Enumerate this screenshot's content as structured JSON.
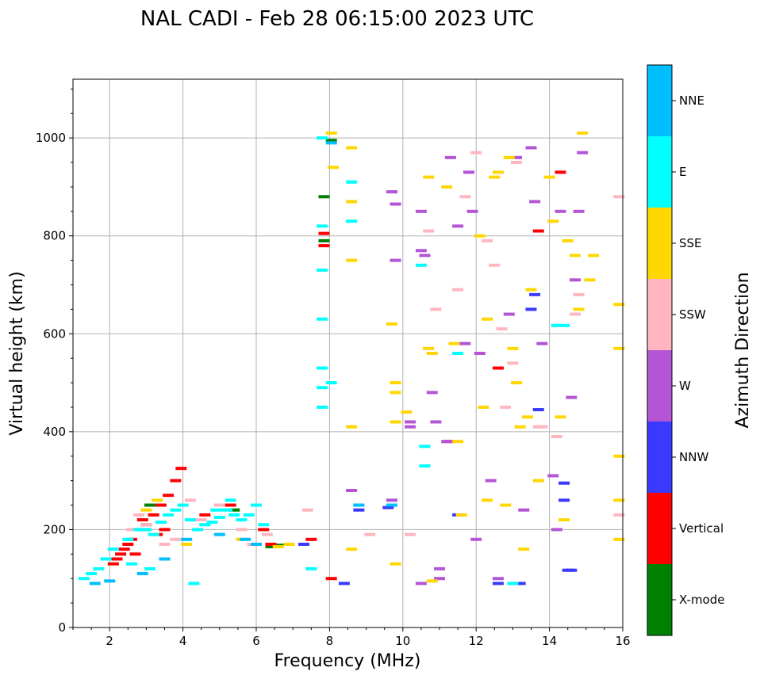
{
  "chart_data": {
    "type": "scatter",
    "title": "NAL CADI - Feb 28 06:15:00 2023 UTC",
    "xlabel": "Frequency (MHz)",
    "ylabel": "Virtual height (km)",
    "xlim": [
      1,
      16
    ],
    "ylim": [
      0,
      1120
    ],
    "xticks": [
      2,
      4,
      6,
      8,
      10,
      12,
      14,
      16
    ],
    "yticks": [
      0,
      200,
      400,
      600,
      800,
      1000
    ],
    "grid": true,
    "colorbar": {
      "title": "Azimuth Direction",
      "categories": [
        {
          "name": "X-mode",
          "color": "#008000"
        },
        {
          "name": "Vertical",
          "color": "#ff0000"
        },
        {
          "name": "NNW",
          "color": "#3a3aff"
        },
        {
          "name": "W",
          "color": "#b455d6"
        },
        {
          "name": "SSW",
          "color": "#ffb6c1"
        },
        {
          "name": "SSE",
          "color": "#ffd700"
        },
        {
          "name": "E",
          "color": "#00ffff"
        },
        {
          "name": "NNE",
          "color": "#00bfff"
        }
      ]
    },
    "series": [
      {
        "name": "X-mode",
        "points": [
          [
            6.4,
            165
          ],
          [
            6.6,
            168
          ],
          [
            7.85,
            880
          ],
          [
            7.85,
            790
          ],
          [
            5.4,
            240
          ],
          [
            3.1,
            250
          ],
          [
            8.05,
            995
          ]
        ]
      },
      {
        "name": "Vertical",
        "points": [
          [
            2.1,
            130
          ],
          [
            2.2,
            140
          ],
          [
            2.3,
            150
          ],
          [
            2.4,
            160
          ],
          [
            2.5,
            170
          ],
          [
            2.6,
            180
          ],
          [
            2.7,
            150
          ],
          [
            2.8,
            200
          ],
          [
            3.0,
            210
          ],
          [
            3.2,
            230
          ],
          [
            3.4,
            250
          ],
          [
            3.6,
            270
          ],
          [
            3.8,
            300
          ],
          [
            3.95,
            325
          ],
          [
            2.9,
            220
          ],
          [
            3.3,
            190
          ],
          [
            3.5,
            200
          ],
          [
            4.6,
            230
          ],
          [
            5.3,
            250
          ],
          [
            6.2,
            200
          ],
          [
            6.4,
            170
          ],
          [
            7.85,
            780
          ],
          [
            7.85,
            805
          ],
          [
            8.05,
            100
          ],
          [
            14.3,
            930
          ],
          [
            12.6,
            530
          ],
          [
            11.25,
            380
          ],
          [
            13.7,
            810
          ],
          [
            7.5,
            180
          ]
        ]
      },
      {
        "name": "NNW",
        "points": [
          [
            8.4,
            90
          ],
          [
            8.8,
            240
          ],
          [
            11.5,
            230
          ],
          [
            12.6,
            90
          ],
          [
            13.2,
            90
          ],
          [
            13.6,
            680
          ],
          [
            13.7,
            445
          ],
          [
            14.4,
            295
          ],
          [
            14.4,
            260
          ],
          [
            14.5,
            117
          ],
          [
            14.6,
            117
          ],
          [
            9.6,
            245
          ],
          [
            13.5,
            650
          ],
          [
            7.3,
            170
          ]
        ]
      },
      {
        "name": "W",
        "points": [
          [
            8.6,
            280
          ],
          [
            9.7,
            890
          ],
          [
            9.8,
            865
          ],
          [
            9.8,
            750
          ],
          [
            10.2,
            410
          ],
          [
            10.2,
            420
          ],
          [
            10.5,
            850
          ],
          [
            10.5,
            770
          ],
          [
            10.6,
            760
          ],
          [
            10.8,
            480
          ],
          [
            11.0,
            120
          ],
          [
            11.0,
            100
          ],
          [
            11.2,
            380
          ],
          [
            11.3,
            960
          ],
          [
            11.5,
            820
          ],
          [
            11.7,
            580
          ],
          [
            11.8,
            930
          ],
          [
            11.9,
            850
          ],
          [
            12.0,
            180
          ],
          [
            12.1,
            560
          ],
          [
            12.4,
            300
          ],
          [
            12.6,
            100
          ],
          [
            12.9,
            640
          ],
          [
            13.1,
            960
          ],
          [
            13.3,
            240
          ],
          [
            13.5,
            980
          ],
          [
            13.6,
            870
          ],
          [
            13.8,
            580
          ],
          [
            14.1,
            310
          ],
          [
            14.2,
            200
          ],
          [
            14.3,
            850
          ],
          [
            14.6,
            470
          ],
          [
            14.7,
            710
          ],
          [
            14.8,
            850
          ],
          [
            14.9,
            970
          ],
          [
            9.7,
            260
          ],
          [
            10.5,
            90
          ],
          [
            10.9,
            420
          ]
        ]
      },
      {
        "name": "SSW",
        "points": [
          [
            2.6,
            200
          ],
          [
            2.8,
            230
          ],
          [
            3.0,
            210
          ],
          [
            3.2,
            190
          ],
          [
            3.5,
            170
          ],
          [
            3.8,
            180
          ],
          [
            4.2,
            260
          ],
          [
            4.5,
            220
          ],
          [
            5.0,
            250
          ],
          [
            5.6,
            200
          ],
          [
            5.9,
            170
          ],
          [
            6.3,
            190
          ],
          [
            7.4,
            240
          ],
          [
            9.1,
            190
          ],
          [
            10.2,
            190
          ],
          [
            10.7,
            810
          ],
          [
            11.5,
            690
          ],
          [
            11.7,
            880
          ],
          [
            12.0,
            970
          ],
          [
            12.3,
            790
          ],
          [
            12.7,
            610
          ],
          [
            12.8,
            450
          ],
          [
            13.0,
            540
          ],
          [
            13.1,
            950
          ],
          [
            13.7,
            410
          ],
          [
            13.8,
            410
          ],
          [
            14.2,
            390
          ],
          [
            14.7,
            640
          ],
          [
            14.8,
            680
          ],
          [
            15.9,
            880
          ],
          [
            15.9,
            230
          ],
          [
            10.9,
            650
          ],
          [
            12.5,
            740
          ]
        ]
      },
      {
        "name": "SSE",
        "points": [
          [
            8.05,
            1010
          ],
          [
            8.1,
            940
          ],
          [
            8.6,
            980
          ],
          [
            8.6,
            870
          ],
          [
            8.6,
            750
          ],
          [
            8.6,
            410
          ],
          [
            8.6,
            160
          ],
          [
            9.7,
            620
          ],
          [
            9.8,
            500
          ],
          [
            9.8,
            480
          ],
          [
            9.8,
            420
          ],
          [
            9.8,
            130
          ],
          [
            10.1,
            440
          ],
          [
            10.7,
            920
          ],
          [
            10.7,
            570
          ],
          [
            10.8,
            560
          ],
          [
            11.2,
            900
          ],
          [
            11.4,
            580
          ],
          [
            11.5,
            380
          ],
          [
            11.6,
            230
          ],
          [
            12.1,
            800
          ],
          [
            12.2,
            450
          ],
          [
            12.3,
            630
          ],
          [
            12.3,
            260
          ],
          [
            12.5,
            920
          ],
          [
            12.6,
            930
          ],
          [
            12.8,
            250
          ],
          [
            12.9,
            960
          ],
          [
            13.0,
            570
          ],
          [
            13.1,
            500
          ],
          [
            13.2,
            410
          ],
          [
            13.3,
            160
          ],
          [
            13.4,
            430
          ],
          [
            13.5,
            690
          ],
          [
            13.7,
            300
          ],
          [
            14.0,
            920
          ],
          [
            14.1,
            830
          ],
          [
            14.3,
            430
          ],
          [
            14.4,
            220
          ],
          [
            14.5,
            790
          ],
          [
            14.7,
            760
          ],
          [
            14.8,
            650
          ],
          [
            14.9,
            1010
          ],
          [
            15.1,
            710
          ],
          [
            15.2,
            760
          ],
          [
            15.9,
            660
          ],
          [
            15.9,
            570
          ],
          [
            15.9,
            350
          ],
          [
            15.9,
            260
          ],
          [
            15.9,
            180
          ],
          [
            10.8,
            95
          ],
          [
            4.1,
            170
          ],
          [
            5.6,
            180
          ],
          [
            6.6,
            165
          ],
          [
            6.9,
            170
          ],
          [
            3.0,
            240
          ],
          [
            3.3,
            260
          ]
        ]
      },
      {
        "name": "E",
        "points": [
          [
            1.3,
            100
          ],
          [
            1.5,
            110
          ],
          [
            1.7,
            120
          ],
          [
            1.9,
            140
          ],
          [
            2.1,
            160
          ],
          [
            2.5,
            180
          ],
          [
            2.8,
            200
          ],
          [
            3.0,
            200
          ],
          [
            3.2,
            190
          ],
          [
            3.4,
            215
          ],
          [
            3.6,
            230
          ],
          [
            3.8,
            240
          ],
          [
            4.0,
            250
          ],
          [
            4.2,
            220
          ],
          [
            4.4,
            200
          ],
          [
            4.6,
            210
          ],
          [
            4.8,
            215
          ],
          [
            5.0,
            225
          ],
          [
            5.2,
            240
          ],
          [
            5.4,
            230
          ],
          [
            5.6,
            220
          ],
          [
            5.8,
            230
          ],
          [
            6.0,
            250
          ],
          [
            6.2,
            210
          ],
          [
            4.3,
            90
          ],
          [
            3.1,
            120
          ],
          [
            2.6,
            130
          ],
          [
            7.8,
            450
          ],
          [
            7.8,
            490
          ],
          [
            7.8,
            530
          ],
          [
            7.8,
            630
          ],
          [
            7.8,
            730
          ],
          [
            7.8,
            820
          ],
          [
            7.8,
            1000
          ],
          [
            8.05,
            500
          ],
          [
            8.8,
            250
          ],
          [
            8.6,
            910
          ],
          [
            8.6,
            830
          ],
          [
            10.6,
            370
          ],
          [
            10.6,
            330
          ],
          [
            10.5,
            740
          ],
          [
            11.5,
            560
          ],
          [
            13.0,
            90
          ],
          [
            14.2,
            617
          ],
          [
            14.4,
            617
          ],
          [
            7.5,
            120
          ],
          [
            4.9,
            240
          ],
          [
            5.3,
            260
          ]
        ]
      },
      {
        "name": "NNE",
        "points": [
          [
            1.6,
            90
          ],
          [
            2.0,
            95
          ],
          [
            2.9,
            110
          ],
          [
            3.5,
            140
          ],
          [
            4.1,
            180
          ],
          [
            5.0,
            190
          ],
          [
            5.7,
            180
          ],
          [
            6.0,
            170
          ],
          [
            8.8,
            250
          ],
          [
            9.7,
            250
          ],
          [
            8.05,
            990
          ]
        ]
      }
    ]
  }
}
